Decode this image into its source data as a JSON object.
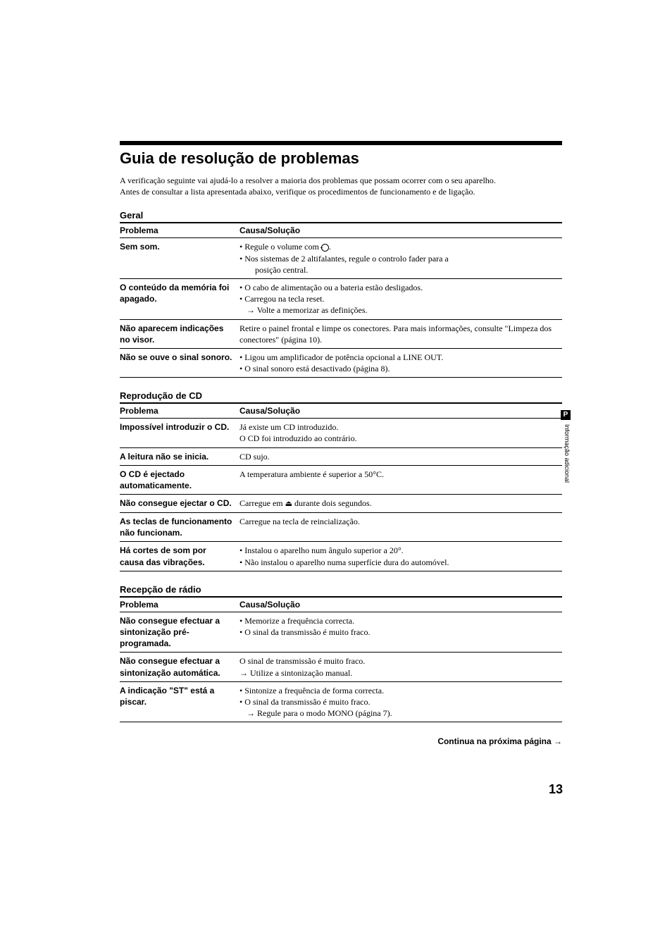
{
  "title": "Guia de resolução de problemas",
  "intro_p1": "A verificação seguinte vai ajudá-lo a resolver a maioria dos problemas que possam ocorrer com o seu aparelho.",
  "intro_p2": "Antes de consultar a lista apresentada abaixo, verifique os procedimentos de funcionamento e de ligação.",
  "col_problem": "Problema",
  "col_cause": "Causa/Solução",
  "sections": {
    "geral": {
      "label": "Geral",
      "rows": [
        {
          "problem": "Sem som.",
          "sol_type": "list",
          "items": [
            {
              "bullet": "• Regule o volume com ",
              "trail": "."
            },
            {
              "bullet": "• Nos sistemas de 2 altifalantes, regule o controlo fader para a",
              "sub": "posição central."
            }
          ],
          "has_vol_icon": true
        },
        {
          "problem": "O conteúdo da memória foi apagado.",
          "sol_type": "list2",
          "items": [
            {
              "bullet": "• O cabo de alimentação ou a bateria estão desligados."
            },
            {
              "bullet": "• Carregou na tecla reset."
            },
            {
              "arrow": "→ Volte a memorizar as definições."
            }
          ]
        },
        {
          "problem": "Não aparecem indicações no visor.",
          "sol_type": "plain",
          "text": "Retire o painel frontal e limpe os conectores. Para mais informações, consulte \"Limpeza dos conectores\" (página 10)."
        },
        {
          "problem": "Não se ouve o sinal sonoro.",
          "sol_type": "list3",
          "items": [
            {
              "bullet": "• Ligou um amplificador de potência opcional a LINE OUT."
            },
            {
              "bullet": "• O sinal sonoro está desactivado (página 8)."
            }
          ]
        }
      ]
    },
    "cd": {
      "label": "Reprodução de CD",
      "rows": [
        {
          "problem": "Impossível introduzir o CD.",
          "l1": "Já existe um CD introduzido.",
          "l2": "O CD foi introduzido ao contrário."
        },
        {
          "problem": "A leitura não se inicia.",
          "l1": "CD sujo."
        },
        {
          "problem": "O CD é ejectado automaticamente.",
          "l1": "A temperatura ambiente é superior a 50°C."
        },
        {
          "problem": "Não consegue ejectar o CD.",
          "l1_pre": "Carregue em ",
          "l1_post": " durante dois segundos.",
          "has_eject": true
        },
        {
          "problem": "As teclas de funcionamento não funcionam.",
          "l1": "Carregue na tecla de reincialização."
        },
        {
          "problem": "Há cortes de som por causa das vibrações.",
          "b1": "• Instalou o aparelho num ângulo superior a 20°.",
          "b2": "• Não instalou o aparelho numa superfície dura do automóvel."
        }
      ]
    },
    "radio": {
      "label": "Recepção de rádio",
      "rows": [
        {
          "problem": "Não consegue efectuar a sintonização pré-programada.",
          "b1": "• Memorize a frequência correcta.",
          "b2": "• O sinal da transmissão é muito fraco."
        },
        {
          "problem": "Não consegue efectuar a sintonização automática.",
          "l1": "O sinal de transmissão é muito fraco.",
          "a1": "→ Utilize a sintonização manual."
        },
        {
          "problem": "A indicação \"ST\" está a piscar.",
          "b1": "• Sintonize a frequência de forma correcta.",
          "b2": "• O sinal da transmissão é muito fraco.",
          "a1": "→ Regule para o modo MONO (página 7)."
        }
      ]
    }
  },
  "continue_text": "Continua na próxima página →",
  "page_number": "13",
  "side_tab": "P",
  "side_label": "Informação adicional"
}
